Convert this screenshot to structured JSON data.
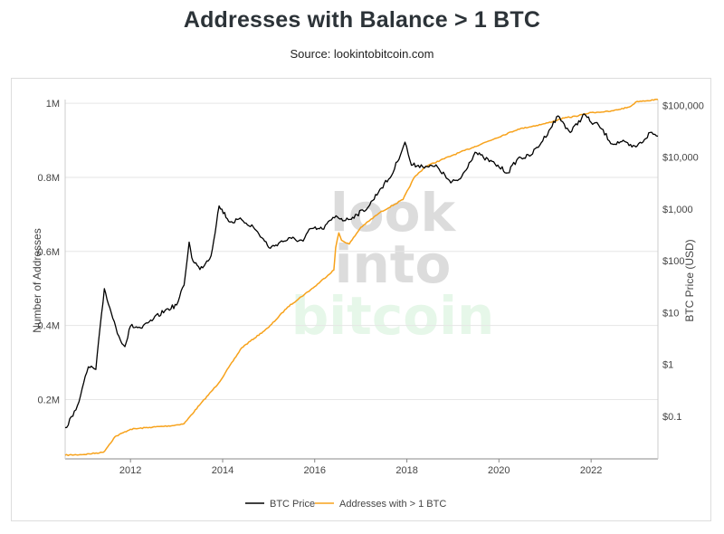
{
  "page": {
    "title": "Addresses with Balance > 1 BTC",
    "subtitle": "Source: lookintobitcoin.com"
  },
  "watermark": {
    "line1": "look",
    "line2": "into",
    "line3": "bitcoin"
  },
  "colors": {
    "btc_price": "#000000",
    "addresses": "#f7a21b",
    "grid": "#e6e6e6",
    "watermark_gray": "#dcdcdc",
    "watermark_green": "#e6f7e9"
  },
  "chart_data": {
    "type": "line",
    "title": "Addresses with Balance > 1 BTC",
    "grid": true,
    "legend_position": "bottom-center",
    "x_axis": {
      "type": "date",
      "range": [
        "2010-08-01",
        "2023-06-15"
      ],
      "tick_labels": [
        "2012",
        "2014",
        "2016",
        "2018",
        "2020",
        "2022"
      ]
    },
    "y_left": {
      "label": "Number of Addresses",
      "range": [
        40000,
        1010000
      ],
      "ticks": [
        200000,
        400000,
        600000,
        800000,
        1000000
      ],
      "tick_labels": [
        "0.2M",
        "0.4M",
        "0.6M",
        "0.8M",
        "1M"
      ]
    },
    "y_right": {
      "label": "BTC Price (USD)",
      "scale": "log",
      "range": [
        0.015,
        130000
      ],
      "ticks": [
        0.1,
        1,
        10,
        100,
        1000,
        10000,
        100000
      ],
      "tick_labels": [
        "$0.1",
        "$1",
        "$10",
        "$100",
        "$1,000",
        "$10,000",
        "$100,000"
      ]
    },
    "series": [
      {
        "name": "BTC Price",
        "axis": "right",
        "x": [
          "2010-08-01",
          "2010-10-01",
          "2010-12-01",
          "2011-02-01",
          "2011-04-01",
          "2011-06-08",
          "2011-08-01",
          "2011-10-01",
          "2011-11-18",
          "2012-01-01",
          "2012-04-01",
          "2012-07-01",
          "2012-10-01",
          "2013-01-01",
          "2013-03-01",
          "2013-04-10",
          "2013-05-01",
          "2013-07-05",
          "2013-10-01",
          "2013-12-04",
          "2014-03-01",
          "2014-06-01",
          "2014-09-01",
          "2015-01-14",
          "2015-04-01",
          "2015-07-01",
          "2015-10-01",
          "2015-12-01",
          "2016-03-01",
          "2016-06-18",
          "2016-09-01",
          "2016-12-01",
          "2017-03-01",
          "2017-06-01",
          "2017-09-01",
          "2017-12-17",
          "2018-02-06",
          "2018-04-01",
          "2018-06-01",
          "2018-09-01",
          "2018-12-15",
          "2019-03-01",
          "2019-06-26",
          "2019-09-01",
          "2019-12-01",
          "2020-03-12",
          "2020-06-01",
          "2020-09-01",
          "2020-12-01",
          "2021-02-01",
          "2021-04-14",
          "2021-07-20",
          "2021-11-10",
          "2022-01-01",
          "2022-03-01",
          "2022-06-18",
          "2022-09-01",
          "2022-11-21",
          "2023-01-01",
          "2023-03-01",
          "2023-04-14",
          "2023-06-15"
        ],
        "y": [
          0.06,
          0.1,
          0.25,
          0.9,
          0.8,
          29,
          10,
          3.5,
          2.2,
          5.5,
          5,
          7.5,
          11,
          14,
          34,
          230,
          115,
          68,
          125,
          1150,
          560,
          620,
          450,
          175,
          230,
          270,
          240,
          420,
          410,
          740,
          600,
          780,
          1100,
          2400,
          4400,
          19500,
          7000,
          7000,
          6700,
          6500,
          3200,
          3850,
          12500,
          9800,
          7400,
          5000,
          9600,
          10500,
          19000,
          33000,
          63000,
          30000,
          68000,
          47000,
          42000,
          18000,
          20000,
          15800,
          16500,
          22000,
          30000,
          25500
        ]
      },
      {
        "name": "Addresses with > 1 BTC",
        "axis": "left",
        "x": [
          "2010-08-01",
          "2011-01-01",
          "2011-06-01",
          "2011-09-01",
          "2012-01-01",
          "2012-06-01",
          "2012-12-01",
          "2013-03-01",
          "2013-07-01",
          "2013-12-01",
          "2014-06-01",
          "2015-01-01",
          "2015-06-01",
          "2016-01-01",
          "2016-06-01",
          "2016-06-15",
          "2016-07-10",
          "2016-08-01",
          "2016-10-01",
          "2017-01-01",
          "2017-06-01",
          "2017-12-01",
          "2018-03-01",
          "2018-06-01",
          "2019-01-01",
          "2019-06-01",
          "2019-12-01",
          "2020-06-01",
          "2021-01-01",
          "2021-06-01",
          "2021-09-01",
          "2022-01-01",
          "2022-06-01",
          "2022-11-01",
          "2023-01-01",
          "2023-06-15"
        ],
        "y": [
          50000,
          52000,
          58000,
          100000,
          120000,
          125000,
          130000,
          135000,
          185000,
          245000,
          340000,
          395000,
          450000,
          505000,
          550000,
          610000,
          650000,
          630000,
          620000,
          665000,
          705000,
          740000,
          800000,
          830000,
          860000,
          880000,
          905000,
          930000,
          945000,
          960000,
          965000,
          975000,
          978000,
          990000,
          1005000,
          1010000
        ]
      }
    ]
  }
}
